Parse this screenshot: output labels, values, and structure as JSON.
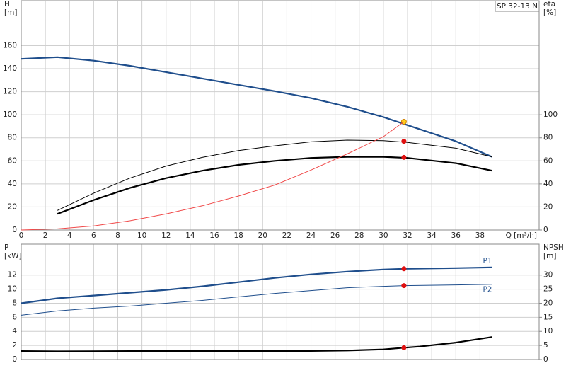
{
  "chart_data": [
    {
      "type": "line",
      "title": "SP 32-13 N",
      "xlabel": "Q [m³/h]",
      "ylabel": [
        "H",
        "[m]"
      ],
      "y2label": [
        "eta",
        "[%]"
      ],
      "xlim": [
        0,
        42.9
      ],
      "xticks": [
        0,
        2,
        4,
        6,
        8,
        10,
        12,
        14,
        16,
        18,
        20,
        22,
        24,
        26,
        28,
        30,
        32,
        34,
        36,
        38
      ],
      "ylim": [
        0,
        199
      ],
      "yticks": [
        0,
        20,
        40,
        60,
        80,
        100,
        120,
        140,
        160
      ],
      "y2lim": [
        0,
        199
      ],
      "y2ticks": [
        0,
        20,
        40,
        60,
        80,
        100
      ],
      "grid": true,
      "series": [
        {
          "color": "#1f4e8c",
          "style": "thick",
          "x": [
            0,
            3,
            6,
            9,
            12,
            15,
            18,
            21,
            24,
            27,
            30,
            32,
            36,
            39
          ],
          "values": [
            148.5,
            150,
            147,
            142.5,
            137,
            131.5,
            126,
            120.5,
            114.5,
            107,
            98,
            91,
            77,
            63.5
          ],
          "marker": {
            "x": 31.7,
            "y": 94,
            "color": "#ffd21f"
          }
        },
        {
          "color": "#000000",
          "style": "thin",
          "axis": "y2",
          "x": [
            3,
            6,
            9,
            12,
            15,
            18,
            21,
            24,
            27,
            30,
            32,
            36,
            39
          ],
          "values": [
            17,
            32,
            45,
            55.5,
            63,
            69,
            73,
            76.5,
            78,
            77.5,
            76,
            71,
            63.5
          ],
          "marker": {
            "x": 31.7,
            "y": 77,
            "color": "#e01010"
          }
        },
        {
          "color": "#000000",
          "style": "thick",
          "axis": "y2",
          "x": [
            3,
            6,
            9,
            12,
            15,
            18,
            21,
            24,
            27,
            30,
            32,
            36,
            39
          ],
          "values": [
            14,
            26,
            36.5,
            45,
            51.5,
            56.5,
            60,
            62.5,
            63.5,
            63.5,
            62.5,
            58,
            51.5
          ],
          "marker": {
            "x": 31.7,
            "y": 63,
            "color": "#e01010"
          }
        },
        {
          "color": "#f04848",
          "style": "thin",
          "x": [
            0,
            3,
            6,
            9,
            12,
            15,
            18,
            21,
            24,
            27,
            30,
            31.7
          ],
          "values": [
            0,
            1,
            3.5,
            8,
            14,
            21,
            29.5,
            39,
            52,
            66,
            81,
            94
          ]
        }
      ]
    },
    {
      "type": "line",
      "ylabel": [
        "P",
        "[kW]"
      ],
      "y2label": [
        "NPSH",
        "[m]"
      ],
      "xlim": [
        0,
        42.9
      ],
      "ylim": [
        0,
        16.4
      ],
      "yticks": [
        0,
        2,
        4,
        6,
        8,
        10,
        12
      ],
      "y2lim": [
        0,
        41
      ],
      "y2ticks": [
        0,
        5,
        10,
        15,
        20,
        25,
        30
      ],
      "grid": true,
      "series": [
        {
          "name": "P1",
          "color": "#1f4e8c",
          "style": "thick",
          "x": [
            0,
            3,
            6,
            9,
            12,
            15,
            18,
            21,
            24,
            27,
            30,
            31.7,
            36,
            39
          ],
          "values": [
            8,
            8.7,
            9.1,
            9.5,
            9.9,
            10.4,
            11,
            11.6,
            12.1,
            12.5,
            12.8,
            12.9,
            13,
            13.1
          ],
          "marker": {
            "x": 31.7,
            "y": 12.9,
            "color": "#e01010"
          }
        },
        {
          "name": "P2",
          "color": "#1f4e8c",
          "style": "thin",
          "x": [
            0,
            3,
            6,
            9,
            12,
            15,
            18,
            21,
            24,
            27,
            30,
            31.7,
            36,
            39
          ],
          "values": [
            6.3,
            6.9,
            7.3,
            7.6,
            8,
            8.4,
            8.9,
            9.4,
            9.8,
            10.2,
            10.4,
            10.5,
            10.6,
            10.7
          ],
          "marker": {
            "x": 31.7,
            "y": 10.5,
            "color": "#e01010"
          }
        },
        {
          "color": "#000000",
          "style": "thick",
          "axis": "y2",
          "x": [
            0,
            3,
            9,
            15,
            21,
            24,
            27,
            30,
            31.7,
            33,
            36,
            39
          ],
          "values": [
            3,
            2.9,
            3,
            3.05,
            3.05,
            3.05,
            3.2,
            3.6,
            4.2,
            4.6,
            6,
            8
          ],
          "marker": {
            "x": 31.7,
            "y": 4.2,
            "color": "#e01010"
          }
        }
      ]
    }
  ]
}
